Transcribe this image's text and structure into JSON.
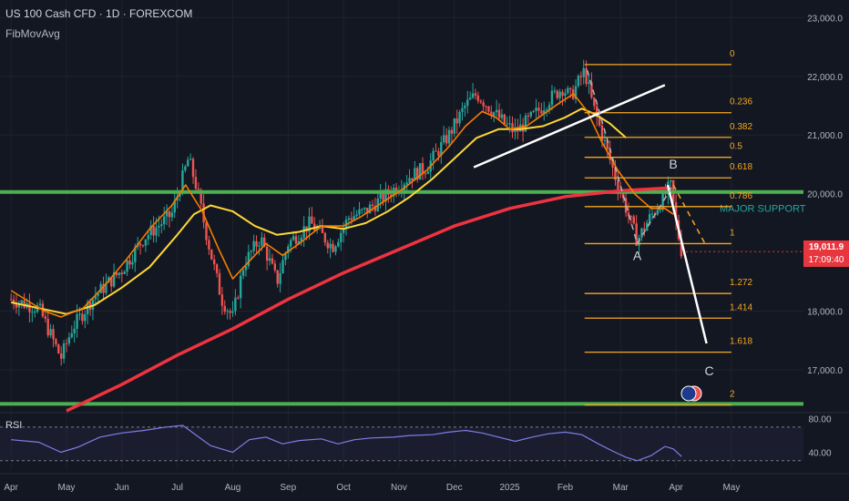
{
  "header": {
    "title": "US 100 Cash CFD · 1D · FOREXCOM",
    "indicator": "FibMovAvg"
  },
  "colors": {
    "background": "#131722",
    "candle_up": "#26a69a",
    "candle_down": "#ef5350",
    "ema_fast": "#f57c00",
    "ema_mid": "#fdd835",
    "ema_slow": "#ef3340",
    "support": "#4caf50",
    "fib": "#f5a623",
    "annotation": "#ffffff",
    "rsi": "#7e7ee6"
  },
  "current": {
    "price": "19,011.9",
    "countdown": "17:09:40"
  },
  "chart_data": {
    "type": "line",
    "y_axis_ticks": [
      "23,000.0",
      "22,000.0",
      "21,000.0",
      "20,000.0",
      "18,000.0",
      "17,000.0"
    ],
    "y_tick_values": [
      23000,
      22000,
      21000,
      20000,
      18000,
      17000
    ],
    "ylim": [
      16270,
      23300
    ],
    "x_axis_labels": [
      "Apr",
      "May",
      "Jun",
      "Jul",
      "Aug",
      "Sep",
      "Oct",
      "Nov",
      "Dec",
      "2025",
      "Feb",
      "Mar",
      "Apr",
      "May"
    ],
    "x_month_index": [
      0,
      1,
      2,
      3,
      4,
      5,
      6,
      7,
      8,
      9,
      10,
      11,
      12,
      13
    ],
    "x_range_months": [
      -0.2,
      14.3
    ],
    "series": [
      {
        "key": "price",
        "points": [
          [
            0,
            18200
          ],
          [
            0.5,
            18050
          ],
          [
            0.9,
            17200
          ],
          [
            1.1,
            17700
          ],
          [
            1.5,
            18250
          ],
          [
            2,
            18700
          ],
          [
            2.4,
            19250
          ],
          [
            2.9,
            19650
          ],
          [
            3.2,
            20600
          ],
          [
            3.35,
            20100
          ],
          [
            3.55,
            19200
          ],
          [
            3.8,
            18200
          ],
          [
            4.0,
            17900
          ],
          [
            4.2,
            18800
          ],
          [
            4.5,
            19250
          ],
          [
            4.8,
            18500
          ],
          [
            5.0,
            19150
          ],
          [
            5.4,
            19500
          ],
          [
            5.8,
            19100
          ],
          [
            6.1,
            19600
          ],
          [
            6.4,
            19700
          ],
          [
            6.8,
            20000
          ],
          [
            7.2,
            20300
          ],
          [
            7.5,
            20450
          ],
          [
            7.9,
            21000
          ],
          [
            8.2,
            21500
          ],
          [
            8.4,
            21700
          ],
          [
            8.6,
            21500
          ],
          [
            8.9,
            21200
          ],
          [
            9.1,
            21050
          ],
          [
            9.4,
            21300
          ],
          [
            9.7,
            21600
          ],
          [
            9.95,
            21800
          ],
          [
            10.1,
            21650
          ],
          [
            10.35,
            22100
          ],
          [
            10.5,
            21500
          ],
          [
            10.7,
            20900
          ],
          [
            10.9,
            20300
          ],
          [
            11.1,
            19750
          ],
          [
            11.3,
            19200
          ],
          [
            11.5,
            19550
          ],
          [
            11.75,
            19900
          ],
          [
            11.9,
            20150
          ],
          [
            12.0,
            19500
          ],
          [
            12.1,
            19012
          ]
        ]
      },
      {
        "key": "ema_fast",
        "points": [
          [
            0,
            18350
          ],
          [
            0.6,
            18000
          ],
          [
            0.9,
            17900
          ],
          [
            1.3,
            18050
          ],
          [
            1.7,
            18450
          ],
          [
            2.1,
            18900
          ],
          [
            2.5,
            19400
          ],
          [
            2.9,
            19800
          ],
          [
            3.15,
            20150
          ],
          [
            3.45,
            19700
          ],
          [
            3.75,
            19050
          ],
          [
            4.0,
            18550
          ],
          [
            4.3,
            18850
          ],
          [
            4.6,
            19150
          ],
          [
            4.9,
            18950
          ],
          [
            5.2,
            19150
          ],
          [
            5.6,
            19450
          ],
          [
            6.0,
            19450
          ],
          [
            6.3,
            19600
          ],
          [
            6.7,
            19850
          ],
          [
            7.1,
            20100
          ],
          [
            7.5,
            20400
          ],
          [
            7.9,
            20800
          ],
          [
            8.2,
            21150
          ],
          [
            8.5,
            21400
          ],
          [
            8.75,
            21300
          ],
          [
            9.0,
            21100
          ],
          [
            9.3,
            21150
          ],
          [
            9.6,
            21350
          ],
          [
            9.9,
            21550
          ],
          [
            10.15,
            21700
          ],
          [
            10.4,
            21400
          ],
          [
            10.65,
            20900
          ],
          [
            10.95,
            20400
          ],
          [
            11.25,
            20000
          ],
          [
            11.55,
            19750
          ],
          [
            11.8,
            19750
          ],
          [
            11.95,
            19650
          ]
        ]
      },
      {
        "key": "ema_mid",
        "points": [
          [
            0,
            18150
          ],
          [
            0.5,
            18050
          ],
          [
            1.0,
            17950
          ],
          [
            1.5,
            18100
          ],
          [
            2.0,
            18400
          ],
          [
            2.5,
            18750
          ],
          [
            3.0,
            19300
          ],
          [
            3.3,
            19650
          ],
          [
            3.6,
            19800
          ],
          [
            4.0,
            19700
          ],
          [
            4.4,
            19450
          ],
          [
            4.8,
            19300
          ],
          [
            5.2,
            19350
          ],
          [
            5.6,
            19450
          ],
          [
            6.0,
            19400
          ],
          [
            6.4,
            19500
          ],
          [
            6.8,
            19700
          ],
          [
            7.2,
            19950
          ],
          [
            7.6,
            20250
          ],
          [
            8.0,
            20600
          ],
          [
            8.4,
            20950
          ],
          [
            8.8,
            21100
          ],
          [
            9.2,
            21100
          ],
          [
            9.6,
            21150
          ],
          [
            10.0,
            21300
          ],
          [
            10.3,
            21450
          ],
          [
            10.55,
            21350
          ],
          [
            10.8,
            21200
          ],
          [
            11.1,
            20950
          ]
        ]
      },
      {
        "key": "ema_slow",
        "points": [
          [
            1.0,
            16300
          ],
          [
            2.0,
            16750
          ],
          [
            3.0,
            17250
          ],
          [
            4.0,
            17700
          ],
          [
            5.0,
            18200
          ],
          [
            6.0,
            18650
          ],
          [
            7.0,
            19050
          ],
          [
            8.0,
            19450
          ],
          [
            9.0,
            19750
          ],
          [
            10.0,
            19950
          ],
          [
            11.0,
            20050
          ],
          [
            11.9,
            20100
          ]
        ]
      }
    ],
    "support_levels": [
      {
        "label": "MAJOR SUPPORT",
        "value": 20030
      },
      {
        "label": "",
        "value": 16420
      }
    ],
    "fib_levels": [
      {
        "label": "0",
        "value": 22200
      },
      {
        "label": "0.236",
        "value": 21380
      },
      {
        "label": "0.382",
        "value": 20960
      },
      {
        "label": "0.5",
        "value": 20620
      },
      {
        "label": "0.618",
        "value": 20270
      },
      {
        "label": "0.786",
        "value": 19780
      },
      {
        "label": "1",
        "value": 19150
      },
      {
        "label": "1.272",
        "value": 18300
      },
      {
        "label": "1.414",
        "value": 17880
      },
      {
        "label": "1.618",
        "value": 17300
      },
      {
        "label": "2",
        "value": 16400
      }
    ],
    "fib_x_range": [
      10.35,
      13.0
    ],
    "wave_labels": [
      {
        "label": "A",
        "x": 11.3,
        "value": 18870
      },
      {
        "label": "B",
        "x": 11.95,
        "value": 20430
      },
      {
        "label": "C",
        "x": 12.6,
        "value": 16910
      }
    ],
    "trendlines": [
      {
        "kind": "solid",
        "points": [
          [
            8.35,
            20450
          ],
          [
            11.8,
            21850
          ]
        ]
      },
      {
        "kind": "solid",
        "points": [
          [
            11.85,
            20150
          ],
          [
            12.55,
            17450
          ]
        ]
      },
      {
        "kind": "dashed",
        "points": [
          [
            10.4,
            22100
          ],
          [
            11.3,
            19150
          ]
        ]
      },
      {
        "kind": "dashed",
        "points": [
          [
            11.3,
            19150
          ],
          [
            11.95,
            20150
          ]
        ]
      },
      {
        "kind": "dashed",
        "points": [
          [
            11.95,
            20150
          ],
          [
            12.55,
            19100
          ]
        ]
      }
    ],
    "rsi": {
      "label": "RSI",
      "ticks": [
        "80.00",
        "40.00"
      ],
      "tick_values": [
        80,
        40
      ],
      "ylim": [
        20,
        85
      ],
      "band": [
        30,
        70
      ],
      "points": [
        [
          0,
          55
        ],
        [
          0.5,
          52
        ],
        [
          0.9,
          40
        ],
        [
          1.2,
          46
        ],
        [
          1.6,
          58
        ],
        [
          2.0,
          63
        ],
        [
          2.4,
          66
        ],
        [
          2.8,
          70
        ],
        [
          3.1,
          72
        ],
        [
          3.35,
          60
        ],
        [
          3.6,
          48
        ],
        [
          3.85,
          43
        ],
        [
          4.0,
          40
        ],
        [
          4.3,
          55
        ],
        [
          4.6,
          58
        ],
        [
          4.9,
          50
        ],
        [
          5.2,
          54
        ],
        [
          5.6,
          56
        ],
        [
          5.9,
          50
        ],
        [
          6.2,
          55
        ],
        [
          6.5,
          57
        ],
        [
          6.9,
          58
        ],
        [
          7.2,
          60
        ],
        [
          7.6,
          61
        ],
        [
          7.9,
          64
        ],
        [
          8.2,
          66
        ],
        [
          8.5,
          63
        ],
        [
          8.8,
          58
        ],
        [
          9.1,
          53
        ],
        [
          9.4,
          58
        ],
        [
          9.7,
          62
        ],
        [
          10.0,
          64
        ],
        [
          10.3,
          61
        ],
        [
          10.6,
          50
        ],
        [
          10.9,
          40
        ],
        [
          11.1,
          34
        ],
        [
          11.3,
          30
        ],
        [
          11.55,
          36
        ],
        [
          11.8,
          47
        ],
        [
          11.95,
          44
        ],
        [
          12.1,
          35
        ]
      ]
    }
  }
}
